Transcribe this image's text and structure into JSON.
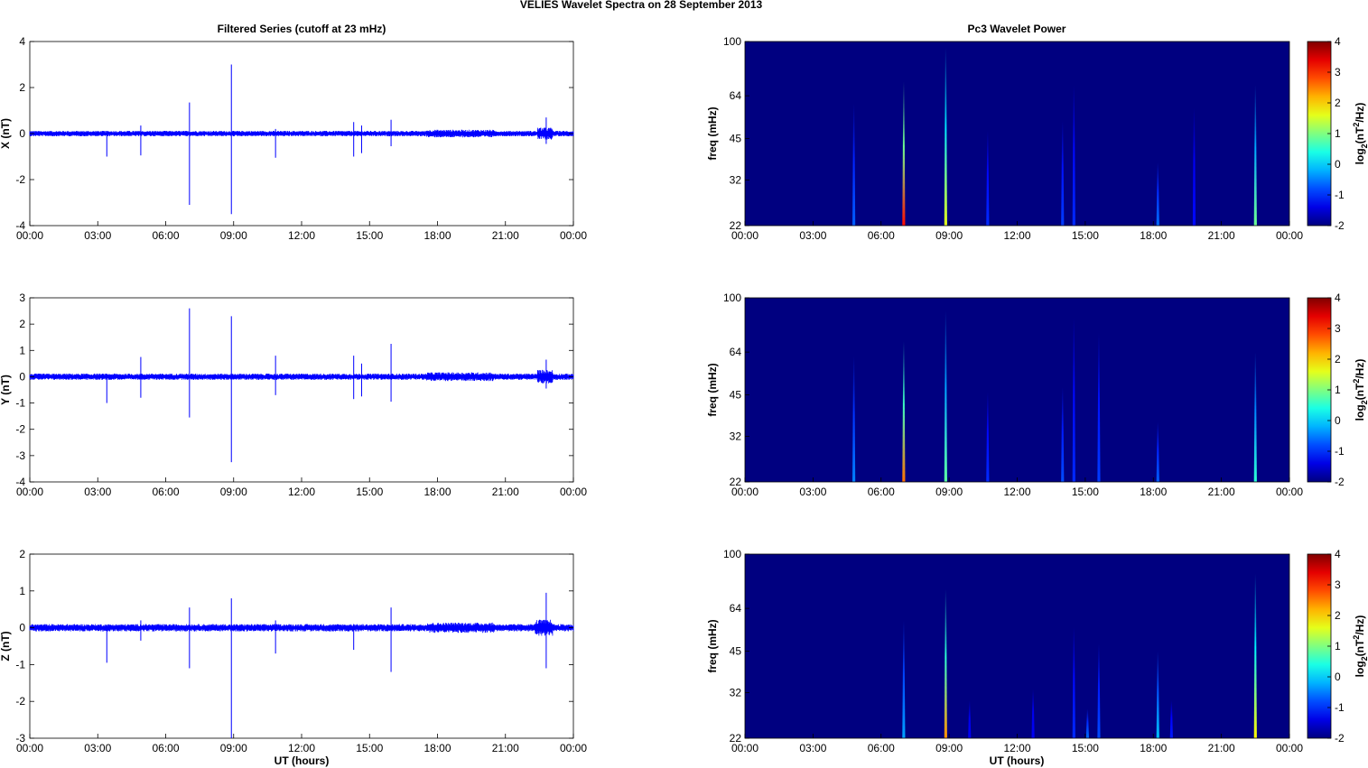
{
  "figure_title": "VELIES Wavelet Spectra on 28 September 2013",
  "left_column_title": "Filtered Series (cutoff at 23 mHz)",
  "right_column_title": "Pc3 Wavelet Power",
  "x_axis_label": "UT (hours)",
  "x_ticks": [
    "00:00",
    "03:00",
    "06:00",
    "09:00",
    "12:00",
    "15:00",
    "18:00",
    "21:00",
    "00:00"
  ],
  "chart_data": [
    {
      "type": "line",
      "ylabel": "X (nT)",
      "ylim": [
        -4,
        4
      ],
      "yticks": [
        4,
        2,
        0,
        -2,
        -4
      ],
      "xlim_hours": [
        0,
        24
      ],
      "grid": false,
      "color": "#0000ff",
      "baseline_noise_nT": 0.12,
      "spikes": [
        {
          "t": 3.4,
          "max": 0.1,
          "min": -1.0
        },
        {
          "t": 4.9,
          "max": 0.35,
          "min": -0.95
        },
        {
          "t": 7.05,
          "max": 1.35,
          "min": -3.1
        },
        {
          "t": 8.9,
          "max": 3.0,
          "min": -3.5
        },
        {
          "t": 10.85,
          "max": 0.2,
          "min": -1.05
        },
        {
          "t": 14.3,
          "max": 0.5,
          "min": -1.0
        },
        {
          "t": 14.65,
          "max": 0.35,
          "min": -0.85
        },
        {
          "t": 15.95,
          "max": 0.6,
          "min": -0.55
        },
        {
          "t": 22.8,
          "max": 0.7,
          "min": -0.45
        }
      ],
      "active_interval": [
        22.4,
        23.1
      ]
    },
    {
      "type": "line",
      "ylabel": "Y (nT)",
      "ylim": [
        -4,
        3
      ],
      "yticks": [
        3,
        2,
        1,
        0,
        -1,
        -2,
        -3,
        -4
      ],
      "xlim_hours": [
        0,
        24
      ],
      "grid": false,
      "color": "#0000ff",
      "baseline_noise_nT": 0.12,
      "spikes": [
        {
          "t": 3.4,
          "max": 0.1,
          "min": -1.0
        },
        {
          "t": 4.9,
          "max": 0.75,
          "min": -0.8
        },
        {
          "t": 7.05,
          "max": 2.6,
          "min": -1.55
        },
        {
          "t": 8.9,
          "max": 2.3,
          "min": -3.25
        },
        {
          "t": 10.85,
          "max": 0.8,
          "min": -0.7
        },
        {
          "t": 14.3,
          "max": 0.8,
          "min": -0.85
        },
        {
          "t": 14.65,
          "max": 0.5,
          "min": -0.75
        },
        {
          "t": 15.95,
          "max": 1.25,
          "min": -0.95
        },
        {
          "t": 22.8,
          "max": 0.65,
          "min": -0.45
        }
      ],
      "active_interval": [
        22.4,
        23.1
      ]
    },
    {
      "type": "line",
      "ylabel": "Z (nT)",
      "ylim": [
        -3,
        2
      ],
      "yticks": [
        2,
        1,
        0,
        -1,
        -2,
        -3
      ],
      "xlim_hours": [
        0,
        24
      ],
      "grid": false,
      "color": "#0000ff",
      "baseline_noise_nT": 0.1,
      "spikes": [
        {
          "t": 3.4,
          "max": 0.05,
          "min": -0.95
        },
        {
          "t": 4.9,
          "max": 0.2,
          "min": -0.35
        },
        {
          "t": 7.05,
          "max": 0.55,
          "min": -1.1
        },
        {
          "t": 8.9,
          "max": 0.8,
          "min": -3.0
        },
        {
          "t": 10.85,
          "max": 0.2,
          "min": -0.7
        },
        {
          "t": 14.3,
          "max": 0.1,
          "min": -0.6
        },
        {
          "t": 15.95,
          "max": 0.55,
          "min": -1.2
        },
        {
          "t": 22.8,
          "max": 0.95,
          "min": -1.1
        }
      ],
      "active_interval": [
        22.3,
        23.1
      ]
    },
    {
      "type": "heatmap",
      "ylabel": "freq (mHz)",
      "y_scale": "log",
      "ylim_mHz": [
        22,
        100
      ],
      "yticks": [
        100,
        64,
        45,
        32,
        22
      ],
      "xlim_hours": [
        0,
        24
      ],
      "background_value": -2,
      "colorbar": {
        "label": "log2(nT^2/Hz)",
        "range": [
          -2,
          4
        ],
        "ticks": [
          4,
          3,
          2,
          1,
          0,
          -1,
          -2
        ],
        "colormap": "jet"
      },
      "bursts": [
        {
          "t": 4.8,
          "f_top": 60,
          "peak": -0.7
        },
        {
          "t": 7.0,
          "f_top": 72,
          "peak": 3.2
        },
        {
          "t": 8.85,
          "f_top": 95,
          "peak": 1.6
        },
        {
          "t": 10.7,
          "f_top": 48,
          "peak": -1.0
        },
        {
          "t": 14.0,
          "f_top": 52,
          "peak": -0.9
        },
        {
          "t": 14.5,
          "f_top": 70,
          "peak": -1.0
        },
        {
          "t": 18.2,
          "f_top": 37,
          "peak": -0.6
        },
        {
          "t": 19.8,
          "f_top": 58,
          "peak": -1.2
        },
        {
          "t": 22.5,
          "f_top": 70,
          "peak": 0.9
        }
      ]
    },
    {
      "type": "heatmap",
      "ylabel": "freq (mHz)",
      "y_scale": "log",
      "ylim_mHz": [
        22,
        100
      ],
      "yticks": [
        100,
        64,
        45,
        32,
        22
      ],
      "xlim_hours": [
        0,
        24
      ],
      "background_value": -2,
      "colorbar": {
        "label": "log2(nT^2/Hz)",
        "range": [
          -2,
          4
        ],
        "ticks": [
          4,
          3,
          2,
          1,
          0,
          -1,
          -2
        ],
        "colormap": "jet"
      },
      "bursts": [
        {
          "t": 4.8,
          "f_top": 62,
          "peak": -0.5
        },
        {
          "t": 7.0,
          "f_top": 70,
          "peak": 2.6
        },
        {
          "t": 8.85,
          "f_top": 90,
          "peak": 0.8
        },
        {
          "t": 10.7,
          "f_top": 46,
          "peak": -1.0
        },
        {
          "t": 14.0,
          "f_top": 48,
          "peak": -0.8
        },
        {
          "t": 14.5,
          "f_top": 85,
          "peak": -1.0
        },
        {
          "t": 15.6,
          "f_top": 75,
          "peak": -0.9
        },
        {
          "t": 18.2,
          "f_top": 36,
          "peak": -0.7
        },
        {
          "t": 22.5,
          "f_top": 64,
          "peak": 0.5
        }
      ]
    },
    {
      "type": "heatmap",
      "ylabel": "freq (mHz)",
      "y_scale": "log",
      "ylim_mHz": [
        22,
        100
      ],
      "yticks": [
        100,
        64,
        45,
        32,
        22
      ],
      "xlim_hours": [
        0,
        24
      ],
      "background_value": -2,
      "colorbar": {
        "label": "log2(nT^2/Hz)",
        "range": [
          -2,
          4
        ],
        "ticks": [
          4,
          3,
          2,
          1,
          0,
          -1,
          -2
        ],
        "colormap": "jet"
      },
      "bursts": [
        {
          "t": 7.0,
          "f_top": 58,
          "peak": -0.3
        },
        {
          "t": 8.85,
          "f_top": 75,
          "peak": 2.4
        },
        {
          "t": 9.9,
          "f_top": 30,
          "peak": -1.3
        },
        {
          "t": 12.7,
          "f_top": 33,
          "peak": -1.3
        },
        {
          "t": 14.5,
          "f_top": 55,
          "peak": -1.0
        },
        {
          "t": 15.1,
          "f_top": 28,
          "peak": -0.6
        },
        {
          "t": 15.6,
          "f_top": 48,
          "peak": -0.8
        },
        {
          "t": 18.2,
          "f_top": 45,
          "peak": -0.1
        },
        {
          "t": 18.8,
          "f_top": 30,
          "peak": -1.1
        },
        {
          "t": 22.5,
          "f_top": 85,
          "peak": 1.8
        }
      ]
    }
  ]
}
